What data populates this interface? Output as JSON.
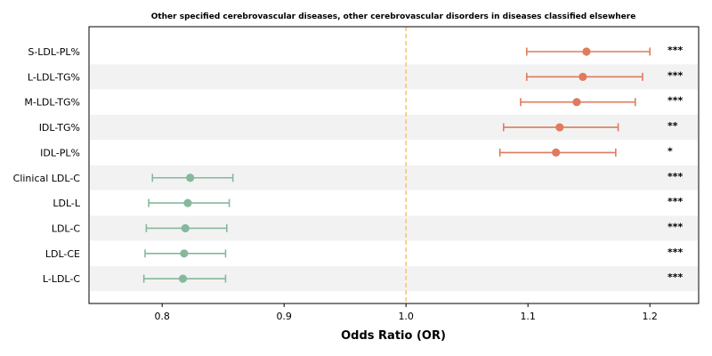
{
  "chart_data": {
    "type": "forest",
    "title": "Other specified cerebrovascular diseases, other cerebrovascular disorders in diseases classified elsewhere",
    "xlabel": "Odds Ratio (OR)",
    "xlim": [
      0.74,
      1.24
    ],
    "xticks": [
      "0.8",
      "0.9",
      "1.0",
      "1.1",
      "1.2"
    ],
    "reference_line": 1.0,
    "grid": false,
    "colors": {
      "positive": "#e07b5e",
      "negative": "#86b89c",
      "reference": "#f5c97a",
      "band": "#f2f2f2"
    },
    "rows": [
      {
        "label": "S-LDL-PL%",
        "or": 1.148,
        "lo": 1.099,
        "hi": 1.2,
        "sig": "***"
      },
      {
        "label": "L-LDL-TG%",
        "or": 1.145,
        "lo": 1.099,
        "hi": 1.194,
        "sig": "***"
      },
      {
        "label": "M-LDL-TG%",
        "or": 1.14,
        "lo": 1.094,
        "hi": 1.188,
        "sig": "***"
      },
      {
        "label": "IDL-TG%",
        "or": 1.126,
        "lo": 1.08,
        "hi": 1.174,
        "sig": "**"
      },
      {
        "label": "IDL-PL%",
        "or": 1.123,
        "lo": 1.077,
        "hi": 1.172,
        "sig": "*"
      },
      {
        "label": "Clinical LDL-C",
        "or": 0.823,
        "lo": 0.792,
        "hi": 0.858,
        "sig": "***"
      },
      {
        "label": "LDL-L",
        "or": 0.821,
        "lo": 0.789,
        "hi": 0.855,
        "sig": "***"
      },
      {
        "label": "LDL-C",
        "or": 0.819,
        "lo": 0.787,
        "hi": 0.853,
        "sig": "***"
      },
      {
        "label": "LDL-CE",
        "or": 0.818,
        "lo": 0.786,
        "hi": 0.852,
        "sig": "***"
      },
      {
        "label": "L-LDL-C",
        "or": 0.817,
        "lo": 0.785,
        "hi": 0.852,
        "sig": "***"
      }
    ]
  }
}
